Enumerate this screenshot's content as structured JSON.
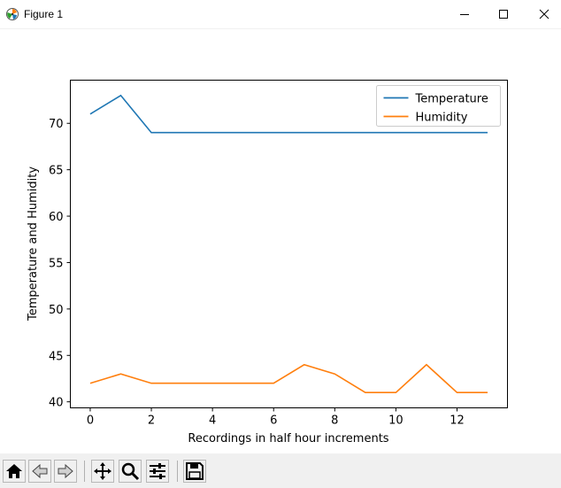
{
  "window": {
    "title": "Figure 1",
    "controls": [
      "minimize",
      "maximize",
      "close"
    ]
  },
  "toolbar": {
    "buttons": [
      {
        "name": "home",
        "icon": "home-icon"
      },
      {
        "name": "back",
        "icon": "back-arrow-icon"
      },
      {
        "name": "forward",
        "icon": "forward-arrow-icon"
      },
      {
        "name": "pan",
        "icon": "pan-move-icon"
      },
      {
        "name": "zoom",
        "icon": "zoom-magnifier-icon"
      },
      {
        "name": "configure-subplots",
        "icon": "sliders-icon"
      },
      {
        "name": "save",
        "icon": "floppy-disk-icon"
      }
    ]
  },
  "chart_data": {
    "type": "line",
    "title": "",
    "xlabel": "Recordings in half hour increments",
    "ylabel": "Temperature and Humidity",
    "x": [
      0,
      1,
      2,
      3,
      4,
      5,
      6,
      7,
      8,
      9,
      10,
      11,
      12,
      13
    ],
    "xlim": [
      -0.65,
      13.65
    ],
    "ylim": [
      39.35,
      74.65
    ],
    "xticks": [
      0,
      2,
      4,
      6,
      8,
      10,
      12
    ],
    "yticks": [
      40,
      45,
      50,
      55,
      60,
      65,
      70
    ],
    "grid": false,
    "legend_position": "top-right",
    "series": [
      {
        "name": "Temperature",
        "color": "#1f77b4",
        "values": [
          71,
          73,
          69,
          69,
          69,
          69,
          69,
          69,
          69,
          69,
          69,
          69,
          69,
          69
        ]
      },
      {
        "name": "Humidity",
        "color": "#ff7f0e",
        "values": [
          42,
          43,
          42,
          42,
          42,
          42,
          42,
          44,
          43,
          41,
          41,
          44,
          41,
          41
        ]
      }
    ]
  }
}
